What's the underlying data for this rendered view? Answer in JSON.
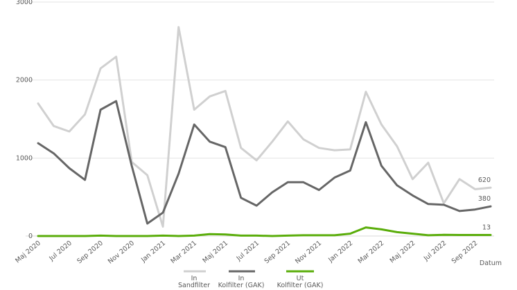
{
  "chart_data": {
    "type": "line",
    "xlabel": "Datum",
    "ylim": [
      0,
      3000
    ],
    "yticks": [
      0,
      1000,
      2000,
      3000
    ],
    "grid": true,
    "legend_position": "bottom",
    "x": [
      "Maj 2020",
      "Jun 2020",
      "Jul 2020",
      "Aug 2020",
      "Sep 2020",
      "Okt 2020",
      "Nov 2020",
      "Dec 2020",
      "Jan 2021",
      "Feb 2021",
      "Mar 2021",
      "Apr 2021",
      "Maj 2021",
      "Jun 2021",
      "Jul 2021",
      "Aug 2021",
      "Sep 2021",
      "Okt 2021",
      "Nov 2021",
      "Dec 2021",
      "Jan 2022",
      "Feb 2022",
      "Mar 2022",
      "Apr 2022",
      "Maj 2022",
      "Jun 2022",
      "Jul 2022",
      "Aug 2022",
      "Sep 2022",
      "Okt 2022"
    ],
    "xtick_labels": [
      "Maj 2020",
      "Jul 2020",
      "Sep 2020",
      "Nov 2020",
      "Jan 2021",
      "Mar 2021",
      "Maj 2021",
      "Jul 2021",
      "Sep 2021",
      "Nov 2021",
      "Jan 2022",
      "Mar 2022",
      "Maj 2022",
      "Jul 2022",
      "Sep 2022"
    ],
    "series": [
      {
        "name": "In Sandfilter",
        "color": "#d0d0d0",
        "values": [
          1700,
          1410,
          1340,
          1560,
          2150,
          2300,
          950,
          780,
          120,
          2680,
          1620,
          1790,
          1860,
          1130,
          970,
          1210,
          1470,
          1240,
          1130,
          1100,
          1110,
          1850,
          1430,
          1150,
          730,
          940,
          420,
          730,
          600,
          620
        ],
        "end_label": "620"
      },
      {
        "name": "In Kolfilter (GAK)",
        "color": "#666666",
        "values": [
          1190,
          1060,
          870,
          720,
          1620,
          1730,
          900,
          160,
          300,
          800,
          1430,
          1210,
          1140,
          490,
          390,
          560,
          690,
          690,
          590,
          750,
          840,
          1460,
          900,
          650,
          520,
          410,
          400,
          320,
          340,
          380
        ],
        "end_label": "380"
      },
      {
        "name": "Ut Kolfilter (GAK)",
        "color": "#5aad0a",
        "values": [
          0,
          0,
          0,
          0,
          5,
          0,
          0,
          0,
          5,
          0,
          5,
          25,
          20,
          5,
          5,
          0,
          5,
          10,
          10,
          10,
          30,
          110,
          85,
          50,
          30,
          10,
          15,
          13,
          13,
          13
        ],
        "end_label": "13"
      }
    ]
  },
  "legend": [
    {
      "line1": "In",
      "line2": "Sandfilter"
    },
    {
      "line1": "In",
      "line2": "Kolfilter (GAK)"
    },
    {
      "line1": "Ut",
      "line2": "Kolfilter (GAK)"
    }
  ]
}
